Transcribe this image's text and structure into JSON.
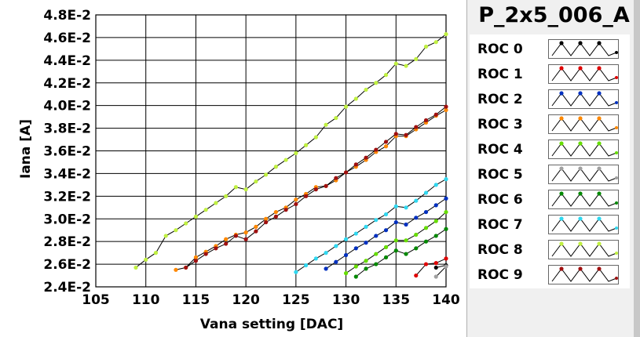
{
  "chart_data": {
    "type": "line",
    "xlabel": "Vana setting [DAC]",
    "ylabel": "Iana [A]",
    "xlim": [
      105,
      140
    ],
    "ylim": [
      0.024,
      0.048
    ],
    "x_ticks": [
      "105",
      "110",
      "115",
      "120",
      "125",
      "130",
      "135",
      "140"
    ],
    "y_ticks": [
      "2.4E-2",
      "2.6E-2",
      "2.8E-2",
      "3.0E-2",
      "3.2E-2",
      "3.4E-2",
      "3.6E-2",
      "3.8E-2",
      "4.0E-2",
      "4.2E-2",
      "4.4E-2",
      "4.6E-2",
      "4.8E-2"
    ],
    "grid": true,
    "series": [
      {
        "name": "ROC 0",
        "color": "#000000",
        "x": [
          139,
          140
        ],
        "y": [
          0.0257,
          0.0259
        ]
      },
      {
        "name": "ROC 1",
        "color": "#e00000",
        "x": [
          137,
          138,
          139,
          140
        ],
        "y": [
          0.025,
          0.026,
          0.0261,
          0.0265
        ]
      },
      {
        "name": "ROC 2",
        "color": "#0030c0",
        "x": [
          128,
          129,
          130,
          131,
          132,
          133,
          134,
          135,
          136,
          137,
          138,
          139,
          140
        ],
        "y": [
          0.0256,
          0.0262,
          0.0268,
          0.0274,
          0.0279,
          0.0285,
          0.029,
          0.0297,
          0.0295,
          0.0301,
          0.0306,
          0.0312,
          0.0318
        ]
      },
      {
        "name": "ROC 3",
        "color": "#ff8800",
        "x": [
          113,
          114,
          115,
          116,
          117,
          118,
          119,
          120,
          121,
          122,
          123,
          124,
          125,
          126,
          127,
          128,
          129,
          130,
          131,
          132,
          133,
          134,
          135,
          136,
          137,
          138,
          139,
          140
        ],
        "y": [
          0.0255,
          0.0257,
          0.0266,
          0.0271,
          0.0276,
          0.0282,
          0.0286,
          0.0288,
          0.0293,
          0.03,
          0.0306,
          0.031,
          0.0317,
          0.0322,
          0.0328,
          0.0329,
          0.0334,
          0.0341,
          0.0346,
          0.0352,
          0.0359,
          0.0364,
          0.0373,
          0.0373,
          0.0379,
          0.0385,
          0.0391,
          0.0396
        ]
      },
      {
        "name": "ROC 4",
        "color": "#66dd00",
        "x": [
          130,
          131,
          132,
          133,
          134,
          135,
          136,
          137,
          138,
          139,
          140
        ],
        "y": [
          0.0252,
          0.0258,
          0.0263,
          0.0269,
          0.0275,
          0.0281,
          0.0281,
          0.0286,
          0.0292,
          0.0298,
          0.0306
        ]
      },
      {
        "name": "ROC 5",
        "color": "#a0a0a0",
        "x": [
          139,
          140
        ],
        "y": [
          0.0249,
          0.0258
        ]
      },
      {
        "name": "ROC 6",
        "color": "#008800",
        "x": [
          131,
          132,
          133,
          134,
          135,
          136,
          137,
          138,
          139,
          140
        ],
        "y": [
          0.0249,
          0.0256,
          0.026,
          0.0266,
          0.0272,
          0.0269,
          0.0274,
          0.028,
          0.0285,
          0.0291
        ]
      },
      {
        "name": "ROC 7",
        "color": "#30d8f0",
        "x": [
          125,
          126,
          127,
          128,
          129,
          130,
          131,
          132,
          133,
          134,
          135,
          136,
          137,
          138,
          139,
          140
        ],
        "y": [
          0.0253,
          0.0259,
          0.0265,
          0.027,
          0.0276,
          0.0282,
          0.0287,
          0.0293,
          0.0299,
          0.0304,
          0.0311,
          0.031,
          0.0316,
          0.0323,
          0.033,
          0.0335
        ]
      },
      {
        "name": "ROC 8",
        "color": "#c0f040",
        "x": [
          109,
          110,
          111,
          112,
          113,
          114,
          115,
          116,
          117,
          118,
          119,
          120,
          121,
          122,
          123,
          124,
          125,
          126,
          127,
          128,
          129,
          130,
          131,
          132,
          133,
          134,
          135,
          136,
          137,
          138,
          139,
          140
        ],
        "y": [
          0.0257,
          0.0264,
          0.027,
          0.0285,
          0.029,
          0.0296,
          0.0302,
          0.0308,
          0.0314,
          0.032,
          0.0328,
          0.0326,
          0.0333,
          0.0339,
          0.0346,
          0.0352,
          0.0358,
          0.0365,
          0.0372,
          0.0383,
          0.0389,
          0.0399,
          0.0406,
          0.0414,
          0.042,
          0.0427,
          0.0437,
          0.0435,
          0.0441,
          0.0452,
          0.0456,
          0.0463
        ]
      },
      {
        "name": "ROC 9",
        "color": "#a01010",
        "x": [
          114,
          115,
          116,
          117,
          118,
          119,
          120,
          121,
          122,
          123,
          124,
          125,
          126,
          127,
          128,
          129,
          130,
          131,
          132,
          133,
          134,
          135,
          136,
          137,
          138,
          139,
          140
        ],
        "y": [
          0.0257,
          0.0263,
          0.0269,
          0.0274,
          0.0278,
          0.0285,
          0.0282,
          0.0289,
          0.0297,
          0.0302,
          0.0308,
          0.0313,
          0.032,
          0.0326,
          0.0329,
          0.0336,
          0.0341,
          0.0348,
          0.0354,
          0.0361,
          0.0368,
          0.0375,
          0.0374,
          0.0381,
          0.0387,
          0.0392,
          0.0399
        ]
      }
    ]
  },
  "legend": {
    "title": "P_2x5_006_A",
    "entries": [
      {
        "label": "ROC 0",
        "color": "#000000"
      },
      {
        "label": "ROC 1",
        "color": "#e00000"
      },
      {
        "label": "ROC 2",
        "color": "#0030c0"
      },
      {
        "label": "ROC 3",
        "color": "#ff8800"
      },
      {
        "label": "ROC 4",
        "color": "#66dd00"
      },
      {
        "label": "ROC 5",
        "color": "#a0a0a0"
      },
      {
        "label": "ROC 6",
        "color": "#008800"
      },
      {
        "label": "ROC 7",
        "color": "#30d8f0"
      },
      {
        "label": "ROC 8",
        "color": "#c0f040"
      },
      {
        "label": "ROC 9",
        "color": "#a01010"
      }
    ]
  }
}
